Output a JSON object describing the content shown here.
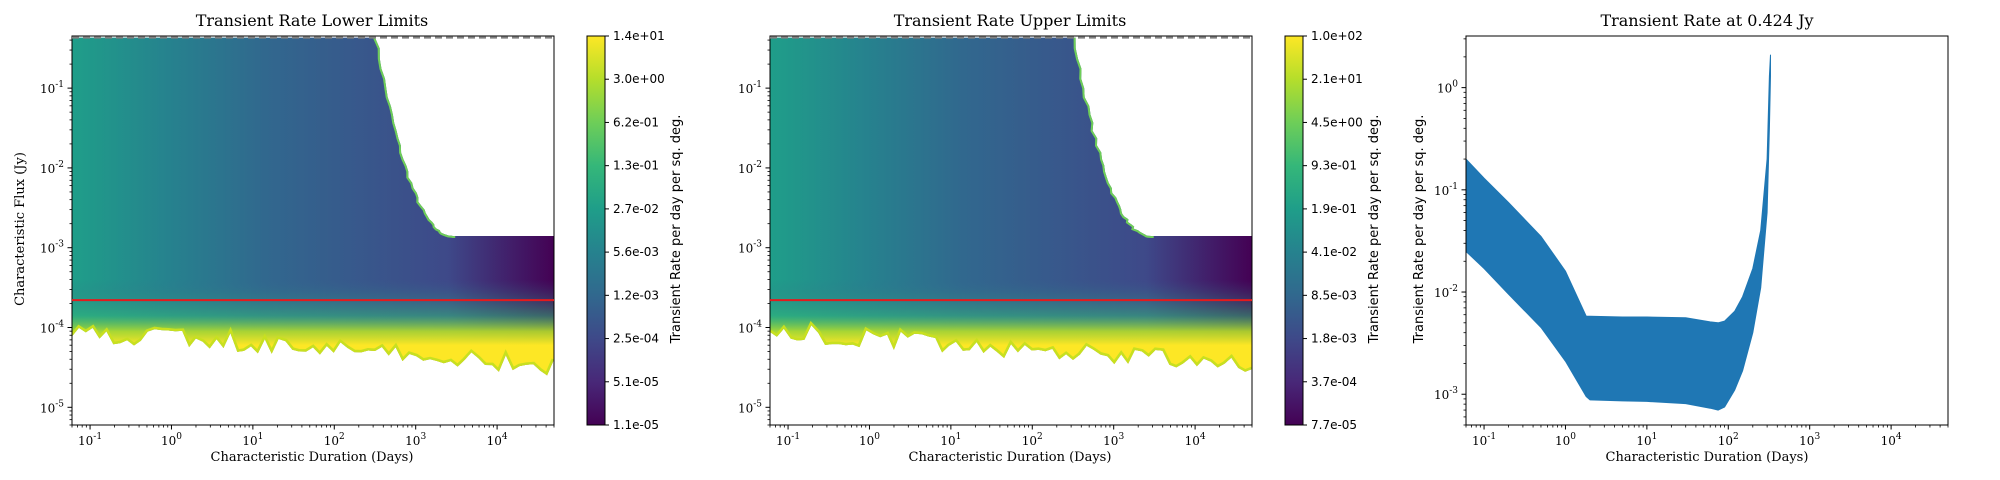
{
  "colors": {
    "viridis": [
      "#440154",
      "#482878",
      "#3e4989",
      "#31688e",
      "#26828e",
      "#1f9e89",
      "#35b779",
      "#6ece58",
      "#b5de2b",
      "#fde725"
    ],
    "red_line": "#e41a1c",
    "band_fill": "#1f77b4",
    "dashed_line": "#808080"
  },
  "chart_data": [
    {
      "type": "heatmap",
      "title": "Transient Rate Lower Limits",
      "xlabel": "Characteristic Duration (Days)",
      "ylabel": "Characteristic Flux (Jy)",
      "xscale": "log",
      "yscale": "log",
      "xlim": [
        0.06,
        50000
      ],
      "ylim": [
        6e-06,
        0.45
      ],
      "x_ticks": [
        {
          "value": 0.1,
          "label": "10^{-1}"
        },
        {
          "value": 1,
          "label": "10^{0}"
        },
        {
          "value": 10,
          "label": "10^{1}"
        },
        {
          "value": 100,
          "label": "10^{2}"
        },
        {
          "value": 1000,
          "label": "10^{3}"
        },
        {
          "value": 10000,
          "label": "10^{4}"
        }
      ],
      "y_ticks": [
        {
          "value": 1e-05,
          "label": "10^{-5}"
        },
        {
          "value": 0.0001,
          "label": "10^{-4}"
        },
        {
          "value": 0.001,
          "label": "10^{-3}"
        },
        {
          "value": 0.01,
          "label": "10^{-2}"
        },
        {
          "value": 0.1,
          "label": "10^{-1}"
        }
      ],
      "colorbar_label": "Transient Rate per day per sq. deg.",
      "colorbar_ticks": [
        "1.1e-05",
        "5.1e-05",
        "2.5e-04",
        "1.2e-03",
        "5.6e-03",
        "2.7e-02",
        "1.3e-01",
        "6.2e-01",
        "3.0e+00",
        "1.4e+01"
      ],
      "red_line_flux": 0.00022,
      "dashed_line_flux": 0.43
    },
    {
      "type": "heatmap",
      "title": "Transient Rate Upper Limits",
      "xlabel": "Characteristic Duration (Days)",
      "ylabel": "",
      "xscale": "log",
      "yscale": "log",
      "xlim": [
        0.06,
        50000
      ],
      "ylim": [
        6e-06,
        0.45
      ],
      "x_ticks": [
        {
          "value": 0.1,
          "label": "10^{-1}"
        },
        {
          "value": 1,
          "label": "10^{0}"
        },
        {
          "value": 10,
          "label": "10^{1}"
        },
        {
          "value": 100,
          "label": "10^{2}"
        },
        {
          "value": 1000,
          "label": "10^{3}"
        },
        {
          "value": 10000,
          "label": "10^{4}"
        }
      ],
      "y_ticks": [
        {
          "value": 1e-05,
          "label": "10^{-5}"
        },
        {
          "value": 0.0001,
          "label": "10^{-4}"
        },
        {
          "value": 0.001,
          "label": "10^{-3}"
        },
        {
          "value": 0.01,
          "label": "10^{-2}"
        },
        {
          "value": 0.1,
          "label": "10^{-1}"
        }
      ],
      "colorbar_label": "Transient Rate per day per sq. deg.",
      "colorbar_ticks": [
        "7.7e-05",
        "3.7e-04",
        "1.8e-03",
        "8.5e-03",
        "4.1e-02",
        "1.9e-01",
        "9.3e-01",
        "4.5e+00",
        "2.1e+01",
        "1.0e+02"
      ],
      "red_line_flux": 0.00022,
      "dashed_line_flux": 0.43
    },
    {
      "type": "area",
      "title": "Transient Rate at 0.424 Jy",
      "xlabel": "Characteristic Duration (Days)",
      "ylabel": "Transient Rate per day per sq. deg.",
      "xscale": "log",
      "yscale": "log",
      "xlim": [
        0.06,
        50000
      ],
      "ylim": [
        0.0005,
        3.2
      ],
      "x_ticks": [
        {
          "value": 0.1,
          "label": "10^{-1}"
        },
        {
          "value": 1,
          "label": "10^{0}"
        },
        {
          "value": 10,
          "label": "10^{1}"
        },
        {
          "value": 100,
          "label": "10^{2}"
        },
        {
          "value": 1000,
          "label": "10^{3}"
        },
        {
          "value": 10000,
          "label": "10^{4}"
        }
      ],
      "y_ticks": [
        {
          "value": 0.001,
          "label": "10^{-3}"
        },
        {
          "value": 0.01,
          "label": "10^{-2}"
        },
        {
          "value": 0.1,
          "label": "10^{-1}"
        },
        {
          "value": 1,
          "label": "10^{0}"
        }
      ],
      "x": [
        0.06,
        0.1,
        0.2,
        0.5,
        1,
        1.8,
        2,
        5,
        10,
        30,
        60,
        75,
        90,
        120,
        150,
        200,
        250,
        300,
        320,
        330
      ],
      "upper": [
        0.2,
        0.13,
        0.075,
        0.035,
        0.016,
        0.0058,
        0.0058,
        0.0057,
        0.0057,
        0.0056,
        0.0051,
        0.005,
        0.0052,
        0.0065,
        0.009,
        0.017,
        0.04,
        0.2,
        1.3,
        2.1
      ],
      "lower": [
        0.025,
        0.017,
        0.0095,
        0.0045,
        0.0021,
        0.00095,
        0.00088,
        0.00086,
        0.00085,
        0.00081,
        0.00073,
        0.0007,
        0.00075,
        0.0011,
        0.0017,
        0.004,
        0.011,
        0.06,
        0.4,
        1.3
      ]
    }
  ]
}
